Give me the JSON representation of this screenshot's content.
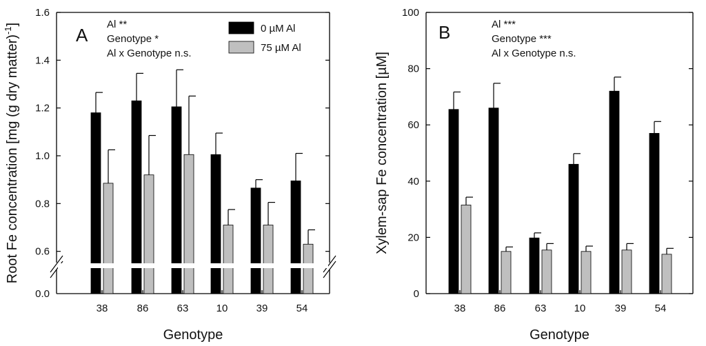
{
  "chart_data": [
    {
      "panel": "A",
      "type": "bar",
      "xlabel": "Genotype",
      "ylabel": "Root Fe concentration [mg (g dry matter)",
      "ylabel_superscript": "-1",
      "ylabel_close": "]",
      "categories": [
        "38",
        "86",
        "63",
        "10",
        "39",
        "54"
      ],
      "axis_break": true,
      "break_lower_tick": "0.0",
      "yticks": [
        0.6,
        0.8,
        1.0,
        1.2,
        1.4,
        1.6
      ],
      "ytick_labels": [
        "0.6",
        "0.8",
        "1.0",
        "1.2",
        "1.4",
        "1.6"
      ],
      "ylim": [
        0.55,
        1.6
      ],
      "series": [
        {
          "name": "0 µM Al",
          "color": "#000000",
          "values": [
            1.18,
            1.23,
            1.205,
            1.005,
            0.865,
            0.895
          ],
          "errors": [
            0.085,
            0.115,
            0.155,
            0.09,
            0.035,
            0.115
          ]
        },
        {
          "name": "75 µM Al",
          "color": "#bfbfbf",
          "values": [
            0.885,
            0.92,
            1.005,
            0.71,
            0.71,
            0.63
          ],
          "errors": [
            0.14,
            0.165,
            0.245,
            0.065,
            0.095,
            0.06
          ]
        }
      ],
      "annotations": [
        "Al **",
        "Genotype *",
        "Al x Genotype n.s."
      ],
      "legend": [
        "0 µM Al",
        "75 µM Al"
      ]
    },
    {
      "panel": "B",
      "type": "bar",
      "xlabel": "Genotype",
      "ylabel": "Xylem-sap Fe concentration [µM]",
      "categories": [
        "38",
        "86",
        "63",
        "10",
        "39",
        "54"
      ],
      "yticks": [
        0,
        20,
        40,
        60,
        80,
        100
      ],
      "ytick_labels": [
        "0",
        "20",
        "40",
        "60",
        "80",
        "100"
      ],
      "ylim": [
        0,
        100
      ],
      "series": [
        {
          "name": "0 µM Al",
          "color": "#000000",
          "values": [
            65.5,
            66,
            19.8,
            46,
            72,
            57
          ],
          "errors": [
            6.2,
            8.8,
            1.8,
            3.8,
            5,
            4.2
          ]
        },
        {
          "name": "75 µM Al",
          "color": "#bfbfbf",
          "values": [
            31.5,
            15,
            15.5,
            15,
            15.5,
            14
          ],
          "errors": [
            2.8,
            1.6,
            2.3,
            1.9,
            2.3,
            2.1
          ]
        }
      ],
      "annotations": [
        "Al ***",
        "Genotype ***",
        "Al x Genotype n.s."
      ]
    }
  ]
}
